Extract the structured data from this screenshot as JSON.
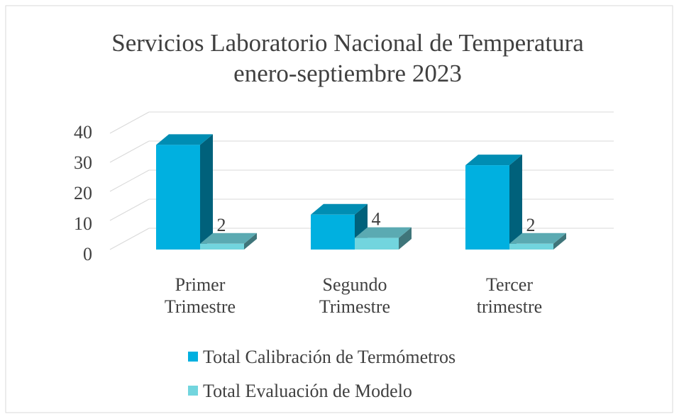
{
  "chart_data": {
    "type": "bar3d",
    "title": "Servicios Laboratorio Nacional de Temperatura",
    "subtitle": "enero-septiembre 2023",
    "categories": [
      "Primer Trimestre",
      "Segundo Trimestre",
      "Tercer trimestre"
    ],
    "series": [
      {
        "name": "Total Calibración de Termómetros",
        "color": "#00b0e0",
        "values": [
          36,
          12,
          29
        ]
      },
      {
        "name": "Total Evaluación de Modelo",
        "color": "#72d5de",
        "values": [
          2,
          4,
          2
        ],
        "data_labels": true
      }
    ],
    "ylim": [
      0,
      40
    ],
    "yticks": [
      0,
      10,
      20,
      30,
      40
    ],
    "grid": true,
    "legend": "bottom"
  }
}
